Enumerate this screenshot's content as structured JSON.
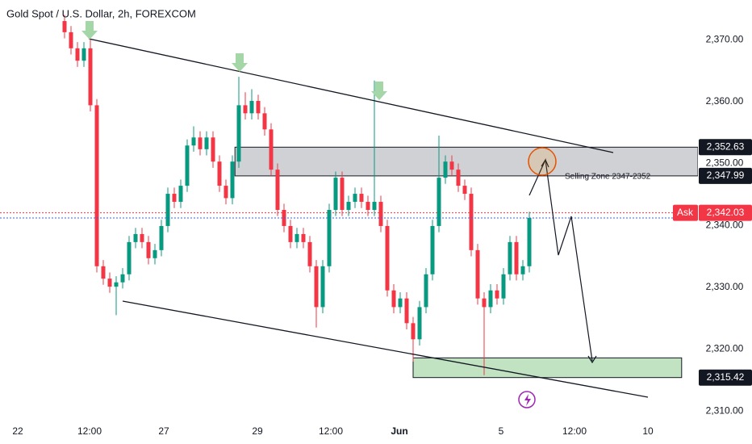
{
  "chart_data": {
    "type": "candlestick",
    "title": "Gold Spot / U.S. Dollar, 2h, FOREXCOM",
    "up_color": "#089981",
    "down_color": "#f23645",
    "open": [
      2373.0,
      2371.2,
      2368.6,
      2366.6,
      2368.6,
      2359.4,
      2333.4,
      2331.4,
      2330.1,
      2330.8,
      2332.1,
      2337.3,
      2338.6,
      2337.3,
      2334.7,
      2336.0,
      2339.9,
      2345.1,
      2343.8,
      2346.4,
      2352.9,
      2354.2,
      2352.3,
      2354.2,
      2350.3,
      2346.4,
      2344.4,
      2350.3,
      2359.4,
      2358.1,
      2360.1,
      2358.1,
      2355.5,
      2349.0,
      2342.5,
      2339.9,
      2337.3,
      2338.6,
      2337.3,
      2333.4,
      2326.8,
      2333.4,
      2342.5,
      2347.7,
      2342.5,
      2343.8,
      2345.1,
      2343.8,
      2342.5,
      2343.8,
      2339.9,
      2329.5,
      2326.8,
      2328.2,
      2324.2,
      2321.6,
      2326.8,
      2332.1,
      2339.9,
      2347.7,
      2350.3,
      2349.0,
      2346.4,
      2345.1,
      2336.0,
      2328.2,
      2326.8,
      2329.5,
      2328.2,
      2332.1,
      2337.3,
      2332.1,
      2333.4
    ],
    "high": [
      2374.0,
      2372.2,
      2369.6,
      2369.6,
      2370.0,
      2360.4,
      2334.4,
      2332.4,
      2331.8,
      2333.1,
      2338.3,
      2339.6,
      2339.6,
      2338.3,
      2337.0,
      2340.9,
      2346.1,
      2346.1,
      2347.4,
      2353.9,
      2356.0,
      2355.2,
      2355.2,
      2355.2,
      2351.3,
      2347.4,
      2351.3,
      2364.0,
      2361.5,
      2362.0,
      2361.1,
      2359.1,
      2356.5,
      2350.0,
      2343.5,
      2340.9,
      2339.6,
      2339.6,
      2338.3,
      2334.4,
      2334.4,
      2343.5,
      2348.7,
      2348.7,
      2344.8,
      2346.1,
      2346.1,
      2344.8,
      2363.4,
      2344.8,
      2340.9,
      2330.5,
      2329.2,
      2329.2,
      2325.2,
      2327.8,
      2333.1,
      2340.9,
      2354.5,
      2351.3,
      2351.3,
      2350.0,
      2347.4,
      2346.1,
      2337.0,
      2329.2,
      2330.5,
      2330.5,
      2333.1,
      2338.3,
      2338.3,
      2334.4,
      2342.2
    ],
    "low": [
      2370.2,
      2367.6,
      2365.6,
      2365.6,
      2358.4,
      2332.4,
      2330.4,
      2329.1,
      2325.5,
      2329.8,
      2331.1,
      2336.3,
      2336.3,
      2333.7,
      2333.7,
      2335.0,
      2338.9,
      2342.8,
      2342.8,
      2345.4,
      2351.9,
      2351.3,
      2351.3,
      2349.3,
      2345.4,
      2343.4,
      2343.4,
      2349.3,
      2357.1,
      2357.1,
      2357.1,
      2354.5,
      2348.0,
      2341.5,
      2338.9,
      2336.3,
      2336.3,
      2336.3,
      2332.4,
      2323.5,
      2325.8,
      2332.4,
      2341.5,
      2341.5,
      2341.5,
      2342.8,
      2342.8,
      2341.5,
      2341.5,
      2338.9,
      2328.5,
      2325.8,
      2325.8,
      2323.2,
      2318.0,
      2320.6,
      2325.8,
      2331.1,
      2338.9,
      2346.7,
      2348.0,
      2345.4,
      2344.1,
      2335.0,
      2327.2,
      2315.8,
      2325.8,
      2327.2,
      2327.2,
      2331.1,
      2331.1,
      2331.1,
      2332.4
    ],
    "close": [
      2371.2,
      2368.6,
      2366.6,
      2368.6,
      2359.4,
      2333.4,
      2331.4,
      2330.1,
      2330.8,
      2332.1,
      2337.3,
      2338.6,
      2337.3,
      2334.7,
      2336.0,
      2339.9,
      2345.1,
      2343.8,
      2346.4,
      2352.9,
      2354.2,
      2352.3,
      2354.2,
      2350.3,
      2346.4,
      2344.4,
      2350.3,
      2359.4,
      2358.1,
      2360.1,
      2358.1,
      2355.5,
      2349.0,
      2342.5,
      2339.9,
      2337.3,
      2338.6,
      2337.3,
      2333.4,
      2326.8,
      2333.4,
      2342.5,
      2347.7,
      2342.5,
      2343.8,
      2345.1,
      2343.8,
      2342.5,
      2343.8,
      2339.9,
      2329.5,
      2326.8,
      2328.2,
      2324.2,
      2321.6,
      2326.8,
      2332.1,
      2339.9,
      2347.7,
      2350.3,
      2349.0,
      2346.4,
      2345.1,
      2336.0,
      2328.2,
      2326.8,
      2329.5,
      2328.2,
      2332.1,
      2337.3,
      2332.1,
      2333.4,
      2341.2
    ],
    "xlim": [
      -10,
      98.125
    ],
    "xticks": [
      {
        "value": -7.25,
        "label": "22"
      },
      {
        "value": 3.875,
        "label": "12:00"
      },
      {
        "value": 15.375,
        "label": "27"
      },
      {
        "value": 29.875,
        "label": "29"
      },
      {
        "value": 41.25,
        "label": "12:00"
      },
      {
        "value": 51.875,
        "label": "Jun"
      },
      {
        "value": 67.625,
        "label": "5"
      },
      {
        "value": 79,
        "label": "12:00"
      },
      {
        "value": 90.375,
        "label": "10"
      }
    ],
    "ylim": [
      2308.6,
      2376.4
    ],
    "yticks": [
      {
        "value": 2310,
        "label": "2,310.00"
      },
      {
        "value": 2320,
        "label": "2,320.00"
      },
      {
        "value": 2330,
        "label": "2,330.00"
      },
      {
        "value": 2340,
        "label": "2,340.00"
      },
      {
        "value": 2350,
        "label": "2,350.00"
      },
      {
        "value": 2360,
        "label": "2,360.00"
      },
      {
        "value": 2370,
        "label": "2,370.00"
      }
    ],
    "zones": [
      {
        "from": 26.4,
        "to": 98.125,
        "low": 2347.99,
        "high": 2352.63,
        "color": "#787b86"
      },
      {
        "from": 54,
        "to": 95.6,
        "low": 2315.42,
        "high": 2318.6,
        "color": "#4caf50"
      }
    ],
    "zone_text": "Selling Zone 2347-2352",
    "price_labels": [
      {
        "value": 2352.63,
        "label": "2,352.63"
      },
      {
        "value": 2347.99,
        "label": "2,347.99"
      },
      {
        "value": 2315.42,
        "label": "2,315.42"
      }
    ],
    "ask": {
      "tag": "Ask",
      "value": 2342.03,
      "label": "2,342.03",
      "color": "#f23645"
    }
  }
}
